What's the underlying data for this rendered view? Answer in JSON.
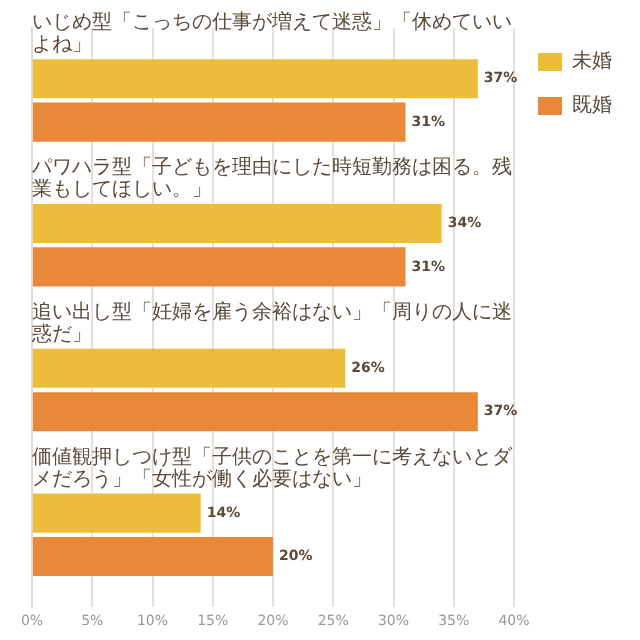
{
  "chart_data": {
    "type": "bar",
    "orientation": "horizontal",
    "categories": [
      "いじめ型「こっちの仕事が増えて迷惑」「休めていいよね」",
      "パワハラ型「子どもを理由にした時短勤務は困る。残業もしてほしい。」",
      "追い出し型「妊婦を雇う余裕はない」「周りの人に迷惑だ」",
      "価値観押しつけ型「子供のことを第一に考えないとダメだろう」「女性が働く必要はない」"
    ],
    "series": [
      {
        "name": "未婚",
        "color": "#ecbd3a",
        "values": [
          37,
          34,
          26,
          14
        ],
        "value_labels": [
          "37%",
          "34%",
          "26%",
          "14%"
        ]
      },
      {
        "name": "既婚",
        "color": "#e8893a",
        "values": [
          31,
          31,
          37,
          20
        ],
        "value_labels": [
          "31%",
          "31%",
          "37%",
          "20%"
        ]
      }
    ],
    "xlim": [
      0,
      40
    ],
    "xticks": [
      {
        "value": 0,
        "label": "0%"
      },
      {
        "value": 5,
        "label": "5%"
      },
      {
        "value": 10,
        "label": "10%"
      },
      {
        "value": 15,
        "label": "15%"
      },
      {
        "value": 20,
        "label": "20%"
      },
      {
        "value": 25,
        "label": "25%"
      },
      {
        "value": 30,
        "label": "30%"
      },
      {
        "value": 35,
        "label": "35%"
      },
      {
        "value": 40,
        "label": "40%"
      }
    ],
    "grid": "x",
    "legend": "top right"
  }
}
